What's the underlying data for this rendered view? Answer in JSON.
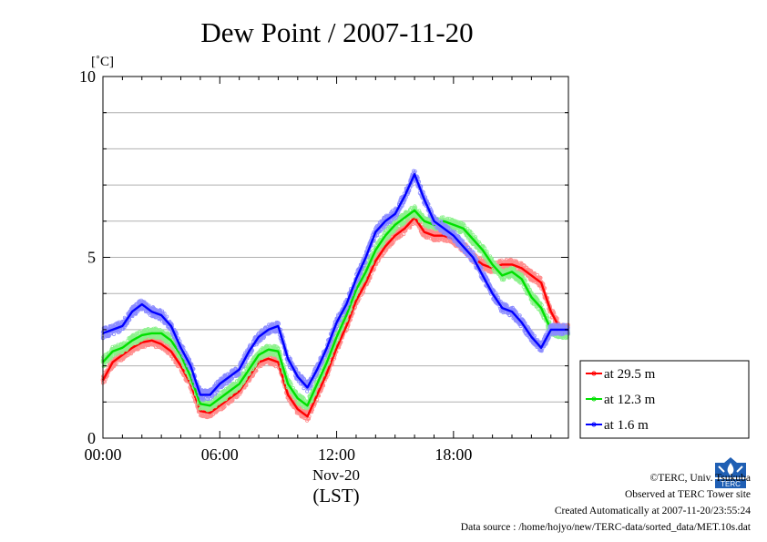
{
  "colors": {
    "series_1": "#ff0000",
    "series_2": "#00e000",
    "series_3": "#0000ff"
  },
  "chart_data": {
    "type": "line",
    "title": "Dew Point / 2007-11-20",
    "yunit": "[˚C]",
    "xlabel_date": "Nov-20",
    "xlabel_tz": "(LST)",
    "ylim": [
      0,
      10
    ],
    "xlim_hours": [
      0,
      23.9
    ],
    "yticks": [
      "0",
      "5",
      "10"
    ],
    "xticks": [
      "00:00",
      "06:00",
      "12:00",
      "18:00"
    ],
    "grid": true,
    "legend_position": "right-lower",
    "series": [
      {
        "name": "at 29.5 m",
        "color": "#ff0000",
        "x": [
          0,
          0.5,
          1,
          1.5,
          2,
          2.5,
          3,
          3.5,
          4,
          4.5,
          5,
          5.5,
          6,
          6.5,
          7,
          7.5,
          8,
          8.5,
          9,
          9.5,
          10,
          10.5,
          11,
          11.5,
          12,
          12.5,
          13,
          13.5,
          14,
          14.5,
          15,
          15.5,
          16,
          16.5,
          17,
          17.5,
          18,
          18.5,
          19,
          19.5,
          20,
          20.5,
          21,
          21.5,
          22,
          22.5,
          23,
          23.5,
          23.9
        ],
        "y": [
          1.6,
          2.1,
          2.3,
          2.5,
          2.65,
          2.7,
          2.6,
          2.4,
          2.0,
          1.5,
          0.75,
          0.7,
          0.9,
          1.1,
          1.3,
          1.7,
          2.1,
          2.2,
          2.1,
          1.2,
          0.8,
          0.6,
          1.2,
          1.8,
          2.5,
          3.1,
          3.8,
          4.3,
          4.9,
          5.3,
          5.6,
          5.8,
          6.1,
          5.7,
          5.6,
          5.6,
          5.5,
          5.3,
          5.0,
          4.8,
          4.7,
          4.8,
          4.8,
          4.7,
          4.5,
          4.3,
          3.5,
          3.0,
          3.0
        ]
      },
      {
        "name": "at 12.3 m",
        "color": "#00e000",
        "x": [
          0,
          0.5,
          1,
          1.5,
          2,
          2.5,
          3,
          3.5,
          4,
          4.5,
          5,
          5.5,
          6,
          6.5,
          7,
          7.5,
          8,
          8.5,
          9,
          9.5,
          10,
          10.5,
          11,
          11.5,
          12,
          12.5,
          13,
          13.5,
          14,
          14.5,
          15,
          15.5,
          16,
          16.5,
          17,
          17.5,
          18,
          18.5,
          19,
          19.5,
          20,
          20.5,
          21,
          21.5,
          22,
          22.5,
          23,
          23.5,
          23.9
        ],
        "y": [
          2.1,
          2.4,
          2.5,
          2.7,
          2.85,
          2.9,
          2.9,
          2.7,
          2.3,
          1.7,
          0.95,
          0.9,
          1.1,
          1.3,
          1.5,
          1.9,
          2.3,
          2.45,
          2.4,
          1.5,
          1.1,
          0.9,
          1.5,
          2.1,
          2.8,
          3.4,
          4.1,
          4.6,
          5.2,
          5.6,
          5.9,
          6.1,
          6.3,
          6.0,
          5.9,
          6.0,
          5.9,
          5.8,
          5.5,
          5.2,
          4.8,
          4.5,
          4.6,
          4.4,
          3.9,
          3.6,
          3.0,
          2.9,
          2.9
        ]
      },
      {
        "name": "at 1.6 m",
        "color": "#0000ff",
        "x": [
          0,
          0.5,
          1,
          1.5,
          2,
          2.5,
          3,
          3.5,
          4,
          4.5,
          5,
          5.5,
          6,
          6.5,
          7,
          7.5,
          8,
          8.5,
          9,
          9.5,
          10,
          10.5,
          11,
          11.5,
          12,
          12.5,
          13,
          13.5,
          14,
          14.5,
          15,
          15.5,
          16,
          16.5,
          17,
          17.5,
          18,
          18.5,
          19,
          19.5,
          20,
          20.5,
          21,
          21.5,
          22,
          22.5,
          23,
          23.5,
          23.9
        ],
        "y": [
          2.9,
          3.0,
          3.1,
          3.5,
          3.7,
          3.5,
          3.4,
          3.1,
          2.5,
          2.0,
          1.2,
          1.2,
          1.5,
          1.7,
          1.9,
          2.4,
          2.8,
          3.0,
          3.1,
          2.2,
          1.7,
          1.4,
          1.9,
          2.5,
          3.2,
          3.7,
          4.4,
          5.0,
          5.7,
          6.0,
          6.2,
          6.7,
          7.3,
          6.6,
          6.0,
          5.8,
          5.6,
          5.3,
          5.0,
          4.5,
          4.0,
          3.6,
          3.5,
          3.2,
          2.8,
          2.5,
          3.0,
          3.0,
          3.0
        ]
      }
    ]
  },
  "credits": {
    "line1": "©TERC, Univ. Tsukuba",
    "line2": "Observed at TERC Tower site",
    "line3": "Created Automatically at 2007-11-20/23:55:24",
    "line4": "Data source : /home/hojyo/new/TERC-data/sorted_data/MET.10s.dat"
  },
  "logo": {
    "text": "TERC",
    "icon": "terc-logo-icon"
  }
}
